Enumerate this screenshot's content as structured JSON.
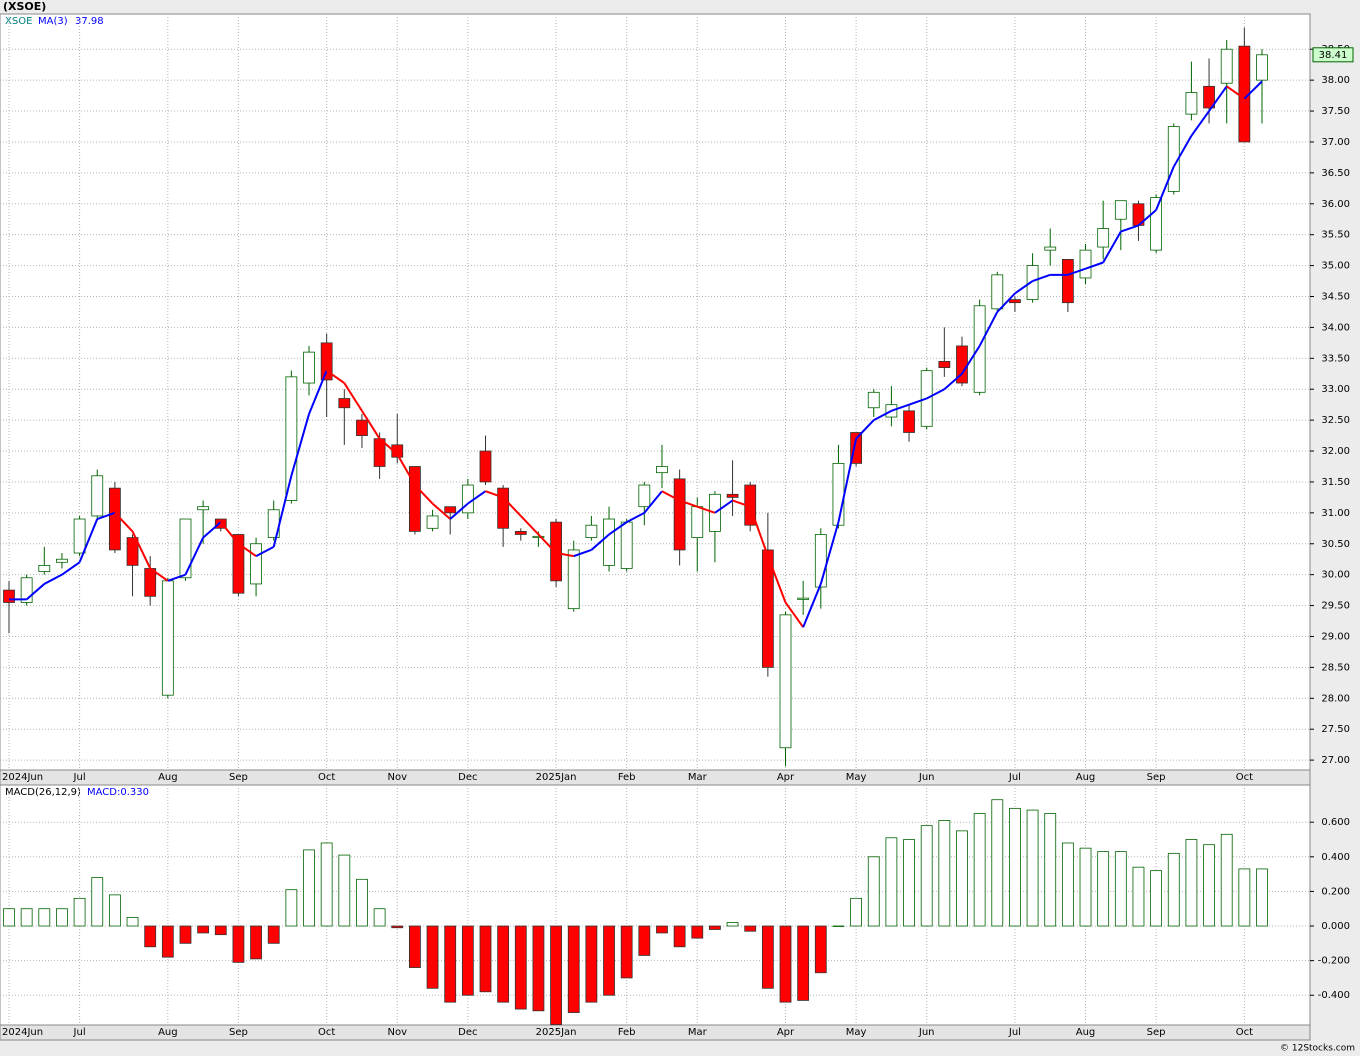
{
  "chart_data": [
    {
      "type": "candlestick",
      "title": "(XSOE)",
      "name": "XSOE",
      "up_color": "#006400",
      "down_color": "#ff0000",
      "grid": true,
      "categories": [
        "2024Jun",
        null,
        null,
        null,
        "Jul",
        null,
        null,
        null,
        null,
        "Aug",
        null,
        null,
        null,
        "Sep",
        null,
        null,
        null,
        null,
        "Oct",
        null,
        null,
        null,
        "Nov",
        null,
        null,
        null,
        "Dec",
        null,
        null,
        null,
        null,
        "2025Jan",
        null,
        null,
        null,
        "Feb",
        null,
        null,
        null,
        "Mar",
        null,
        null,
        null,
        null,
        "Apr",
        null,
        null,
        null,
        "May",
        null,
        null,
        null,
        "Jun",
        null,
        null,
        null,
        null,
        "Jul",
        null,
        null,
        null,
        "Aug",
        null,
        null,
        null,
        "Sep",
        null,
        null,
        null,
        null,
        "Oct",
        null
      ],
      "open": [
        29.75,
        29.55,
        30.05,
        30.2,
        30.35,
        30.95,
        31.4,
        30.6,
        30.1,
        28.05,
        29.95,
        31.05,
        30.9,
        30.65,
        29.85,
        30.6,
        31.2,
        33.1,
        33.75,
        32.85,
        32.5,
        32.2,
        32.1,
        31.75,
        30.75,
        31.1,
        31.0,
        32.0,
        31.4,
        30.7,
        30.6,
        30.85,
        29.45,
        30.6,
        30.15,
        30.1,
        31.1,
        31.65,
        31.55,
        30.6,
        30.7,
        31.3,
        31.45,
        30.4,
        27.2,
        29.6,
        29.8,
        30.8,
        32.3,
        32.7,
        32.55,
        32.65,
        32.4,
        33.45,
        33.7,
        32.95,
        34.3,
        34.45,
        34.45,
        35.25,
        35.1,
        34.8,
        35.3,
        35.75,
        36.0,
        35.25,
        36.2,
        37.45,
        37.9,
        37.95,
        38.55,
        38.0
      ],
      "high": [
        29.9,
        30.0,
        30.45,
        30.35,
        30.95,
        31.7,
        31.5,
        30.65,
        30.3,
        29.95,
        30.9,
        31.2,
        30.9,
        30.65,
        30.6,
        31.2,
        33.3,
        33.7,
        33.9,
        33.0,
        32.6,
        32.3,
        32.6,
        31.75,
        31.05,
        31.1,
        31.55,
        32.25,
        31.45,
        30.75,
        30.7,
        30.9,
        30.55,
        30.95,
        31.1,
        30.9,
        31.5,
        32.1,
        31.7,
        31.25,
        31.35,
        31.85,
        31.5,
        31.0,
        29.4,
        29.9,
        30.75,
        32.1,
        32.3,
        33.0,
        33.05,
        32.75,
        33.35,
        34.0,
        33.85,
        34.45,
        34.9,
        34.5,
        35.2,
        35.6,
        35.1,
        35.35,
        36.05,
        36.05,
        36.05,
        36.15,
        37.3,
        38.3,
        38.35,
        38.65,
        38.85,
        38.5
      ],
      "low": [
        29.05,
        29.5,
        30.0,
        30.1,
        30.3,
        30.9,
        30.35,
        29.65,
        29.5,
        28.0,
        29.9,
        30.5,
        30.7,
        29.65,
        29.65,
        30.55,
        31.15,
        32.9,
        32.55,
        32.1,
        32.05,
        31.55,
        31.8,
        30.65,
        30.7,
        30.65,
        30.9,
        31.45,
        30.45,
        30.55,
        30.45,
        29.8,
        29.4,
        30.55,
        30.05,
        30.05,
        30.8,
        31.4,
        30.15,
        30.05,
        30.2,
        30.95,
        30.7,
        28.35,
        26.9,
        29.35,
        29.45,
        30.75,
        31.75,
        32.55,
        32.4,
        32.15,
        32.35,
        33.2,
        33.05,
        32.9,
        34.25,
        34.25,
        34.4,
        35.0,
        34.25,
        34.7,
        35.1,
        35.25,
        35.4,
        35.2,
        36.15,
        37.35,
        37.3,
        37.3,
        37.0,
        37.3
      ],
      "close": [
        29.55,
        29.95,
        30.15,
        30.25,
        30.9,
        31.6,
        30.4,
        30.15,
        29.65,
        29.9,
        30.9,
        31.1,
        30.75,
        29.7,
        30.5,
        31.05,
        33.2,
        33.6,
        33.15,
        32.7,
        32.25,
        31.75,
        31.9,
        30.7,
        30.95,
        31.0,
        31.45,
        31.5,
        30.75,
        30.65,
        30.62,
        29.9,
        30.4,
        30.8,
        30.9,
        30.85,
        31.45,
        31.75,
        30.4,
        31.1,
        31.3,
        31.25,
        30.8,
        28.5,
        29.35,
        29.62,
        30.65,
        31.8,
        31.8,
        32.95,
        32.75,
        32.3,
        33.3,
        33.35,
        33.1,
        34.35,
        34.85,
        34.4,
        35.0,
        35.3,
        34.4,
        35.25,
        35.6,
        36.05,
        35.65,
        36.1,
        37.25,
        37.8,
        37.55,
        38.5,
        37.0,
        38.41
      ],
      "ma": {
        "name": "MA(3)",
        "up_color": "#0000ff",
        "down_color": "#ff0000",
        "values": [
          29.6,
          29.6,
          29.85,
          30.0,
          30.2,
          30.9,
          31.0,
          30.7,
          30.1,
          29.9,
          30.0,
          30.6,
          30.85,
          30.5,
          30.3,
          30.45,
          31.6,
          32.6,
          33.3,
          33.1,
          32.65,
          32.2,
          31.95,
          31.45,
          31.15,
          30.9,
          31.15,
          31.35,
          31.25,
          30.95,
          30.65,
          30.35,
          30.3,
          30.4,
          30.65,
          30.85,
          31.0,
          31.35,
          31.2,
          31.1,
          31.0,
          31.2,
          31.1,
          30.3,
          29.55,
          29.15,
          29.85,
          30.85,
          32.2,
          32.5,
          32.65,
          32.75,
          32.85,
          33.0,
          33.25,
          33.7,
          34.25,
          34.55,
          34.75,
          34.85,
          34.85,
          34.95,
          35.05,
          35.55,
          35.65,
          35.9,
          36.6,
          37.1,
          37.5,
          37.9,
          37.7,
          37.98
        ]
      },
      "ylim": [
        26.84,
        39.07
      ],
      "yticks": [
        {
          "value": 27,
          "label": "27.00"
        },
        {
          "value": 27.5,
          "label": "27.50"
        },
        {
          "value": 28,
          "label": "28.00"
        },
        {
          "value": 28.5,
          "label": "28.50"
        },
        {
          "value": 29,
          "label": "29.00"
        },
        {
          "value": 29.5,
          "label": "29.50"
        },
        {
          "value": 30,
          "label": "30.00"
        },
        {
          "value": 30.5,
          "label": "30.50"
        },
        {
          "value": 31,
          "label": "31.00"
        },
        {
          "value": 31.5,
          "label": "31.50"
        },
        {
          "value": 32,
          "label": "32.00"
        },
        {
          "value": 32.5,
          "label": "32.50"
        },
        {
          "value": 33,
          "label": "33.00"
        },
        {
          "value": 33.5,
          "label": "33.50"
        },
        {
          "value": 34,
          "label": "34.00"
        },
        {
          "value": 34.5,
          "label": "34.50"
        },
        {
          "value": 35,
          "label": "35.00"
        },
        {
          "value": 35.5,
          "label": "35.50"
        },
        {
          "value": 36,
          "label": "36.00"
        },
        {
          "value": 36.5,
          "label": "36.50"
        },
        {
          "value": 37,
          "label": "37.00"
        },
        {
          "value": 37.5,
          "label": "37.50"
        },
        {
          "value": 38,
          "label": "38.00"
        },
        {
          "value": 38.5,
          "label": "38.50"
        }
      ]
    },
    {
      "type": "bar",
      "name": "MACD(26,12,9)",
      "legend_text": "MACD:0.330",
      "up_color": "#006400",
      "down_color": "#ff0000",
      "grid": true,
      "values": [
        0.1,
        0.1,
        0.1,
        0.1,
        0.16,
        0.28,
        0.18,
        0.05,
        -0.12,
        -0.18,
        -0.1,
        -0.04,
        -0.05,
        -0.21,
        -0.19,
        -0.1,
        0.21,
        0.44,
        0.48,
        0.41,
        0.27,
        0.1,
        -0.01,
        -0.24,
        -0.36,
        -0.44,
        -0.4,
        -0.38,
        -0.44,
        -0.48,
        -0.49,
        -0.57,
        -0.5,
        -0.44,
        -0.4,
        -0.3,
        -0.17,
        -0.04,
        -0.12,
        -0.07,
        -0.02,
        0.02,
        -0.03,
        -0.36,
        -0.44,
        -0.43,
        -0.27,
        0.0,
        0.16,
        0.4,
        0.51,
        0.5,
        0.58,
        0.61,
        0.55,
        0.65,
        0.73,
        0.68,
        0.67,
        0.65,
        0.48,
        0.45,
        0.43,
        0.43,
        0.34,
        0.32,
        0.42,
        0.5,
        0.47,
        0.53,
        0.33,
        0.33
      ],
      "ylim": [
        -0.572,
        0.815
      ],
      "yticks": [
        {
          "value": -0.4,
          "label": "-0.400"
        },
        {
          "value": -0.2,
          "label": "-0.200"
        },
        {
          "value": 0,
          "label": "0.000"
        },
        {
          "value": 0.2,
          "label": "0.200"
        },
        {
          "value": 0.4,
          "label": "0.400"
        },
        {
          "value": 0.6,
          "label": "0.600"
        }
      ]
    }
  ],
  "footer": "© 12Stocks.com"
}
